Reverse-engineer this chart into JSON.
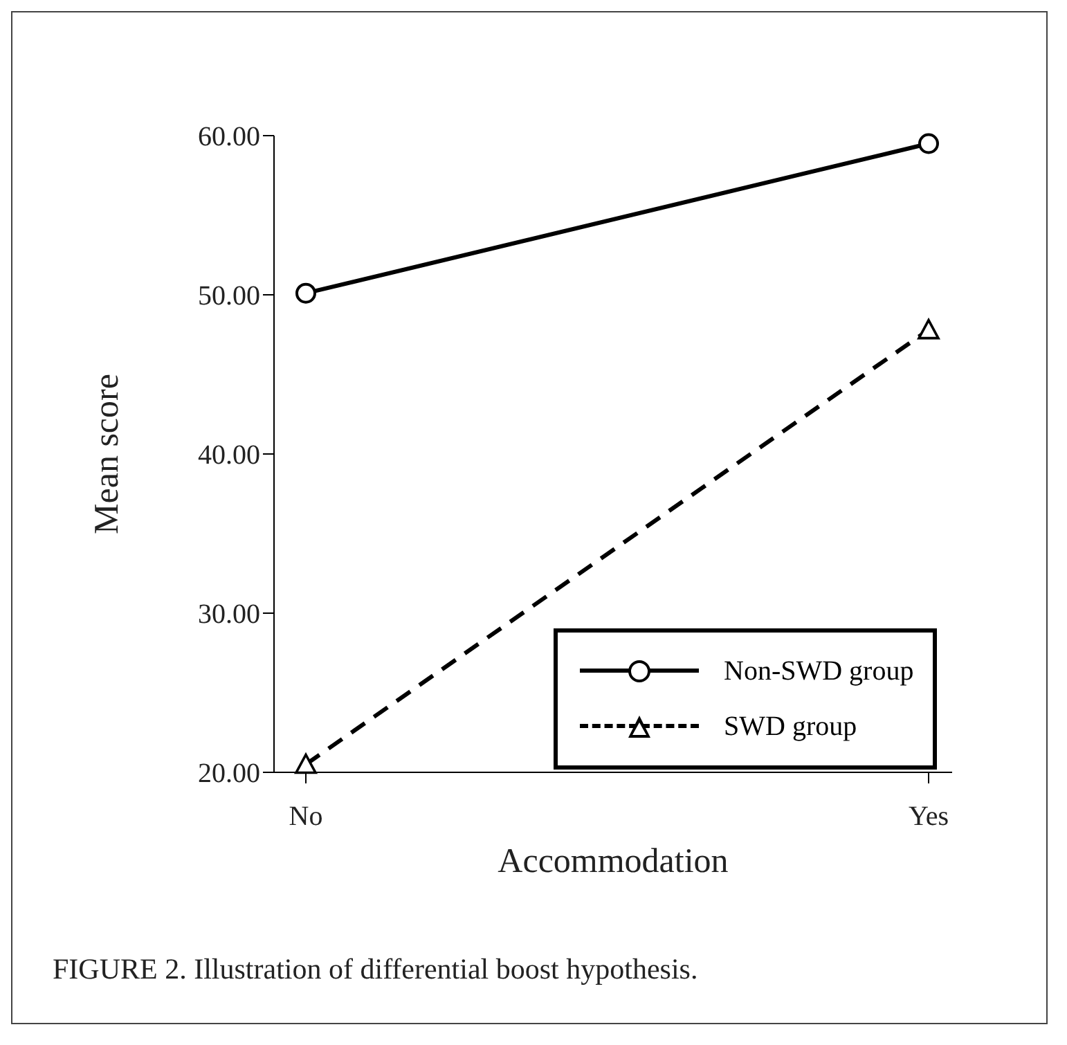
{
  "chart_data": {
    "type": "line",
    "xlabel": "Accommodation",
    "ylabel": "Mean score",
    "categories": [
      "No",
      "Yes"
    ],
    "series": [
      {
        "name": "Non-SWD group",
        "color": "#000000",
        "values": [
          50.1,
          59.5
        ],
        "marker": "circle",
        "line_style": "solid"
      },
      {
        "name": "SWD group",
        "color": "#000000",
        "values": [
          20.5,
          47.8
        ],
        "marker": "triangle",
        "line_style": "dashed"
      }
    ],
    "ylim": [
      20,
      60
    ],
    "yticks": [
      {
        "value": 20,
        "label": "20.00"
      },
      {
        "value": 30,
        "label": "30.00"
      },
      {
        "value": 40,
        "label": "40.00"
      },
      {
        "value": 50,
        "label": "50.00"
      },
      {
        "value": 60,
        "label": "60.00"
      }
    ],
    "grid": false,
    "legend": "bottom right",
    "annotations": [
      "FIGURE 2. Illustration of differential boost hypothesis."
    ]
  }
}
